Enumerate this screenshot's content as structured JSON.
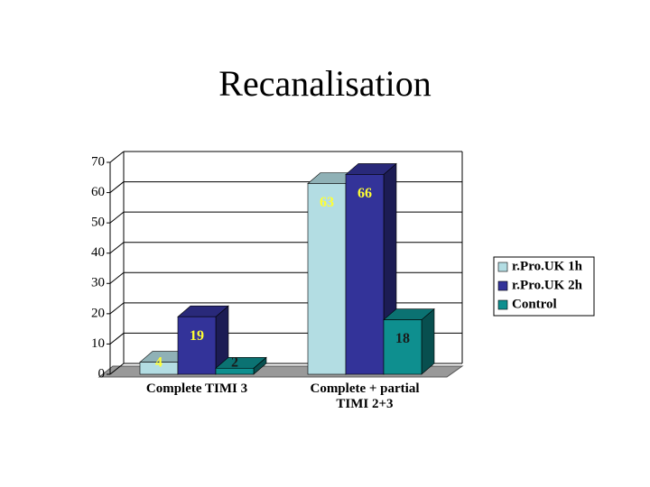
{
  "chart_data": {
    "type": "bar3d",
    "title": "Recanalisation",
    "categories": [
      "Complete TIMI 3",
      "Complete + partial\nTIMI 2+3"
    ],
    "series": [
      {
        "name": "r.Pro.UK 1h",
        "color": "#b3dde3",
        "label_color": "#ffff33",
        "values": [
          4,
          63
        ]
      },
      {
        "name": "r.Pro.UK 2h",
        "color": "#333399",
        "label_color": "#ffff33",
        "values": [
          19,
          66
        ]
      },
      {
        "name": "Control",
        "color": "#0e8f8f",
        "label_color": "#1a1a1a",
        "values": [
          2,
          18
        ]
      }
    ],
    "ylim": [
      0,
      70
    ],
    "yticks": [
      0,
      10,
      20,
      30,
      40,
      50,
      60,
      70
    ],
    "grid": true,
    "legend": "right"
  }
}
